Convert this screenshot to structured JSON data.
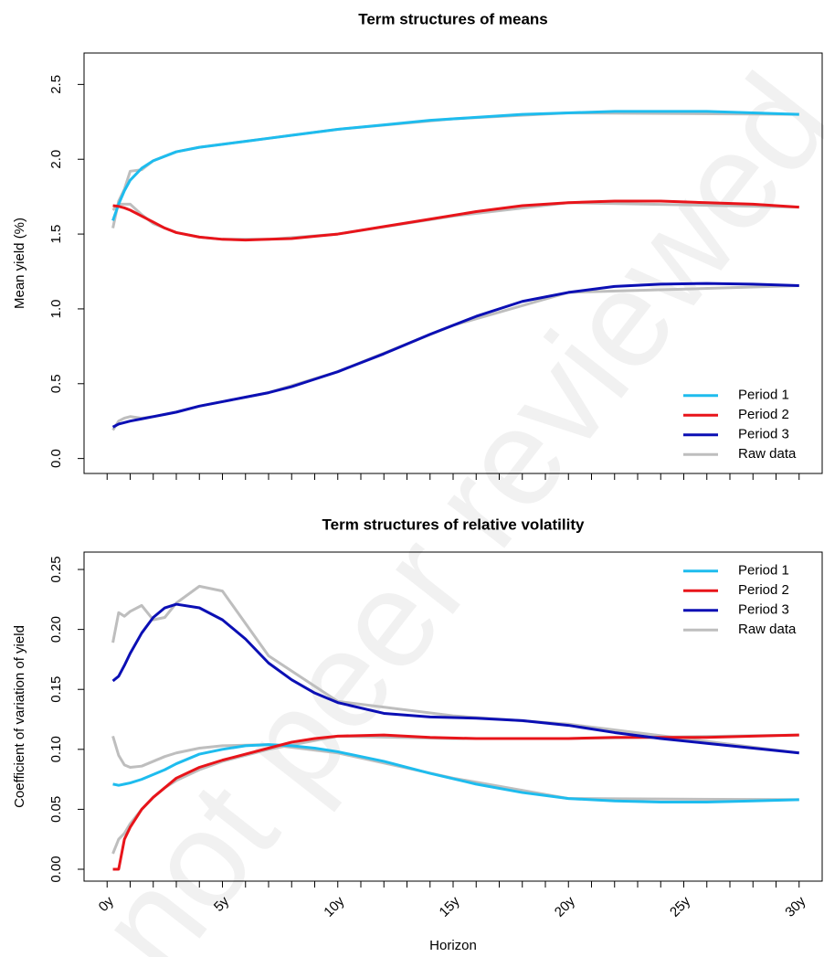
{
  "watermark": "not peer reviewed",
  "chart_data": [
    {
      "type": "line",
      "title": "Term structures of means",
      "ylabel": "Mean yield (%)",
      "xlim": [
        -1,
        31
      ],
      "ylim": [
        -0.1,
        2.71
      ],
      "xminorticks": [
        0,
        1,
        2,
        3,
        4,
        5,
        6,
        7,
        8,
        9,
        10,
        11,
        12,
        13,
        14,
        15,
        16,
        17,
        18,
        19,
        20,
        21,
        22,
        23,
        24,
        25,
        26,
        27,
        28,
        29,
        30
      ],
      "yticks": [
        {
          "value": 0,
          "label": "0.0"
        },
        {
          "value": 0.5,
          "label": "0.5"
        },
        {
          "value": 1,
          "label": "1.0"
        },
        {
          "value": 1.5,
          "label": "1.5"
        },
        {
          "value": 2,
          "label": "2.0"
        },
        {
          "value": 2.5,
          "label": "2.5"
        }
      ],
      "legend": "bottomright",
      "x": [
        0.25,
        0.5,
        0.75,
        1,
        1.5,
        2,
        2.5,
        3,
        4,
        5,
        6,
        7,
        8,
        9,
        10,
        12,
        14,
        16,
        18,
        20,
        22,
        24,
        26,
        28,
        30
      ],
      "series": [
        {
          "name": "Raw data",
          "color": "#bebebe",
          "x": [
            0.25,
            0.5,
            0.75,
            1,
            1.5,
            2,
            3,
            4,
            5,
            7,
            10,
            15,
            20,
            30
          ],
          "values": [
            [
              1.54,
              1.72,
              1.8,
              1.92,
              1.93,
              1.99,
              2.05,
              2.08,
              2.1,
              2.14,
              2.2,
              2.27,
              2.31,
              2.3
            ],
            [
              1.66,
              1.7,
              1.7,
              1.7,
              1.63,
              1.57,
              1.51,
              1.48,
              1.465,
              1.465,
              1.5,
              1.62,
              1.71,
              1.68
            ],
            [
              0.19,
              0.25,
              0.27,
              0.28,
              0.27,
              0.28,
              0.31,
              0.35,
              0.38,
              0.44,
              0.58,
              0.89,
              1.11,
              1.155
            ]
          ]
        },
        {
          "name": "Period 1",
          "color": "#1ebcee",
          "values": [
            1.59,
            1.7,
            1.79,
            1.86,
            1.94,
            1.99,
            2.02,
            2.05,
            2.08,
            2.1,
            2.12,
            2.14,
            2.16,
            2.18,
            2.2,
            2.23,
            2.26,
            2.28,
            2.3,
            2.31,
            2.32,
            2.32,
            2.32,
            2.31,
            2.3
          ]
        },
        {
          "name": "Period 2",
          "color": "#e8141a",
          "values": [
            1.69,
            1.685,
            1.675,
            1.66,
            1.62,
            1.58,
            1.54,
            1.51,
            1.48,
            1.465,
            1.46,
            1.465,
            1.47,
            1.485,
            1.5,
            1.55,
            1.6,
            1.65,
            1.69,
            1.71,
            1.72,
            1.72,
            1.71,
            1.7,
            1.68
          ]
        },
        {
          "name": "Period 3",
          "color": "#0b0fb4",
          "values": [
            0.21,
            0.23,
            0.24,
            0.25,
            0.265,
            0.28,
            0.295,
            0.31,
            0.35,
            0.38,
            0.41,
            0.44,
            0.48,
            0.53,
            0.58,
            0.7,
            0.83,
            0.95,
            1.05,
            1.11,
            1.15,
            1.165,
            1.17,
            1.165,
            1.155
          ]
        }
      ]
    },
    {
      "type": "line",
      "title": "Term structures of relative volatility",
      "ylabel": "Coefficient of variation of yield",
      "xlabel": "Horizon",
      "xlim": [
        -1,
        31
      ],
      "ylim": [
        -0.0099,
        0.2645
      ],
      "xticks": [
        {
          "value": 0,
          "label": "0y"
        },
        {
          "value": 5,
          "label": "5y"
        },
        {
          "value": 10,
          "label": "10y"
        },
        {
          "value": 15,
          "label": "15y"
        },
        {
          "value": 20,
          "label": "20y"
        },
        {
          "value": 25,
          "label": "25y"
        },
        {
          "value": 30,
          "label": "30y"
        }
      ],
      "xminorticks": [
        1,
        2,
        3,
        4,
        6,
        7,
        8,
        9,
        11,
        12,
        13,
        14,
        16,
        17,
        18,
        19,
        21,
        22,
        23,
        24,
        26,
        27,
        28,
        29
      ],
      "yticks": [
        {
          "value": 0,
          "label": "0.00"
        },
        {
          "value": 0.05,
          "label": "0.05"
        },
        {
          "value": 0.1,
          "label": "0.10"
        },
        {
          "value": 0.15,
          "label": "0.15"
        },
        {
          "value": 0.2,
          "label": "0.20"
        },
        {
          "value": 0.25,
          "label": "0.25"
        }
      ],
      "legend": "topright",
      "x": [
        0.25,
        0.5,
        0.75,
        1,
        1.5,
        2,
        2.5,
        3,
        4,
        5,
        6,
        7,
        8,
        9,
        10,
        12,
        14,
        16,
        18,
        20,
        22,
        24,
        26,
        28,
        30
      ],
      "series": [
        {
          "name": "Raw data",
          "color": "#bebebe",
          "x": [
            0.25,
            0.5,
            0.75,
            1,
            1.5,
            2,
            2.5,
            3,
            4,
            5,
            7,
            10,
            15,
            20,
            30
          ],
          "values": [
            [
              0.189,
              0.214,
              0.211,
              0.215,
              0.22,
              0.208,
              0.21,
              0.222,
              0.236,
              0.232,
              0.178,
              0.14,
              0.128,
              0.121,
              0.097
            ],
            [
              0.111,
              0.095,
              0.087,
              0.085,
              0.086,
              0.09,
              0.094,
              0.097,
              0.101,
              0.103,
              0.104,
              0.097,
              0.076,
              0.059,
              0.058
            ],
            [
              0.013,
              0.025,
              0.03,
              0.038,
              0.05,
              0.06,
              0.068,
              0.074,
              0.083,
              0.09,
              0.1,
              0.111,
              0.109,
              0.109,
              0.112
            ]
          ]
        },
        {
          "name": "Period 1",
          "color": "#1ebcee",
          "values": [
            0.071,
            0.07,
            0.071,
            0.072,
            0.075,
            0.079,
            0.083,
            0.088,
            0.096,
            0.1,
            0.103,
            0.104,
            0.103,
            0.101,
            0.098,
            0.09,
            0.08,
            0.071,
            0.064,
            0.059,
            0.057,
            0.056,
            0.056,
            0.057,
            0.058
          ]
        },
        {
          "name": "Period 2",
          "color": "#e8141a",
          "values": [
            0,
            0,
            0.025,
            0.035,
            0.05,
            0.06,
            0.068,
            0.076,
            0.085,
            0.091,
            0.096,
            0.101,
            0.106,
            0.109,
            0.111,
            0.112,
            0.11,
            0.109,
            0.109,
            0.109,
            0.11,
            0.11,
            0.11,
            0.111,
            0.112
          ]
        },
        {
          "name": "Period 3",
          "color": "#0b0fb4",
          "values": [
            0.157,
            0.161,
            0.17,
            0.18,
            0.197,
            0.21,
            0.218,
            0.221,
            0.218,
            0.208,
            0.192,
            0.172,
            0.158,
            0.147,
            0.139,
            0.13,
            0.127,
            0.126,
            0.124,
            0.12,
            0.114,
            0.109,
            0.105,
            0.101,
            0.097
          ]
        }
      ]
    }
  ]
}
